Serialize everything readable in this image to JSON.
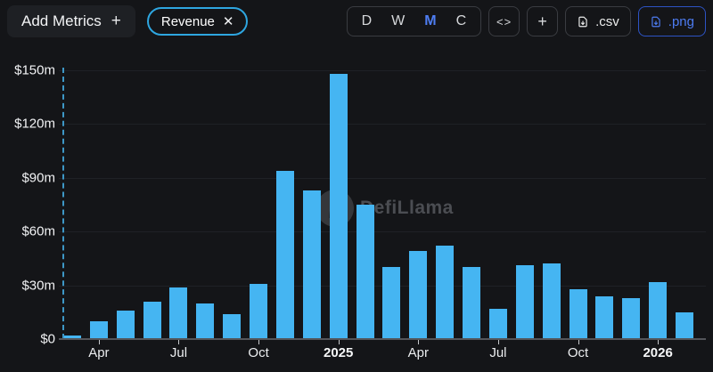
{
  "header": {
    "add_metrics_label": "Add Metrics",
    "add_metrics_plus": "+",
    "metric_pill": {
      "label": "Revenue",
      "close": "✕"
    },
    "intervals": [
      "D",
      "W",
      "M",
      "C"
    ],
    "interval_selected": "M",
    "embed_label": "<>",
    "add_chart_label": "+",
    "csv_label": ".csv",
    "png_label": ".png"
  },
  "watermark": {
    "text": "DefiLlama"
  },
  "colors": {
    "background": "#141518",
    "bar": "#45b5f2",
    "pill_border": "#2ea6e0",
    "selected_interval": "#4e7df2",
    "png_accent": "#4d7cf2",
    "dashed_line": "#3d97c6",
    "axis": "#53555a",
    "watermark": "#4b4d52"
  },
  "chart_data": {
    "type": "bar",
    "title": "Revenue (monthly)",
    "series_name": "Revenue",
    "unit": "USD millions",
    "legend_position": "none",
    "grid": "horizontal-faint",
    "categories": [
      "Mar 2024",
      "Apr 2024",
      "May 2024",
      "Jun 2024",
      "Jul 2024",
      "Aug 2024",
      "Sep 2024",
      "Oct 2024",
      "Nov 2024",
      "Dec 2024",
      "Jan 2025",
      "Feb 2025",
      "Mar 2025",
      "Apr 2025",
      "May 2025",
      "Jun 2025",
      "Jul 2025",
      "Aug 2025",
      "Sep 2025",
      "Oct 2025",
      "Nov 2025",
      "Dec 2025",
      "Jan 2026",
      "Feb 2026"
    ],
    "values": [
      2,
      10,
      16,
      21,
      29,
      20,
      14,
      31,
      94,
      83,
      148,
      75,
      40,
      49,
      52,
      40,
      17,
      41,
      42,
      28,
      24,
      23,
      32,
      15
    ],
    "ylim": [
      0,
      150
    ],
    "y_ticks": [
      {
        "value": 0,
        "label": "$0"
      },
      {
        "value": 30,
        "label": "$30m"
      },
      {
        "value": 60,
        "label": "$60m"
      },
      {
        "value": 90,
        "label": "$90m"
      },
      {
        "value": 120,
        "label": "$120m"
      },
      {
        "value": 150,
        "label": "$150m"
      }
    ],
    "x_ticks": [
      {
        "index": 1,
        "label": "Apr",
        "bold": false
      },
      {
        "index": 4,
        "label": "Jul",
        "bold": false
      },
      {
        "index": 7,
        "label": "Oct",
        "bold": false
      },
      {
        "index": 10,
        "label": "2025",
        "bold": true
      },
      {
        "index": 13,
        "label": "Apr",
        "bold": false
      },
      {
        "index": 16,
        "label": "Jul",
        "bold": false
      },
      {
        "index": 19,
        "label": "Oct",
        "bold": false
      },
      {
        "index": 22,
        "label": "2026",
        "bold": true
      }
    ]
  }
}
